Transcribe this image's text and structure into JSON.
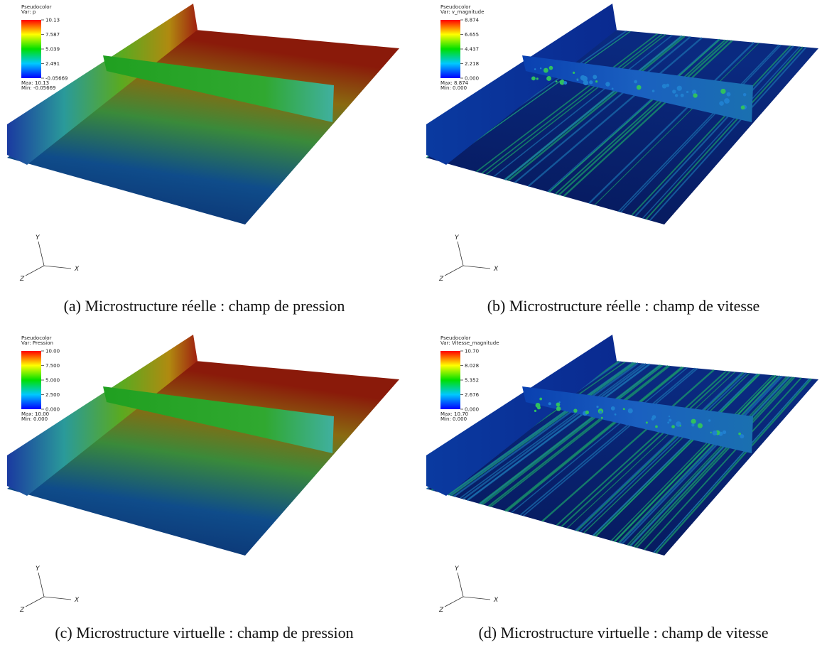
{
  "panels": [
    {
      "legend": {
        "title": "Pseudocolor",
        "variable": "Var: p",
        "ticks": [
          "10.13",
          "7.587",
          "5.039",
          "2.491",
          "-0.05669"
        ],
        "max": "Max: 10.13",
        "min": "Min: -0.05669"
      },
      "axes": {
        "x": "X",
        "y": "Y",
        "z": "Z"
      },
      "caption": "(a) Microstructure réelle : champ de pression"
    },
    {
      "legend": {
        "title": "Pseudocolor",
        "variable": "Var: v_magnitude",
        "ticks": [
          "8.874",
          "6.655",
          "4.437",
          "2.218",
          "0.000"
        ],
        "max": "Max: 8.874",
        "min": "Min: 0.000"
      },
      "axes": {
        "x": "X",
        "y": "Y",
        "z": "Z"
      },
      "caption": "(b) Microstructure réelle : champ de vitesse"
    },
    {
      "legend": {
        "title": "Pseudocolor",
        "variable": "Var: Pression",
        "ticks": [
          "10.00",
          "7.500",
          "5.000",
          "2.500",
          "0.000"
        ],
        "max": "Max: 10.00",
        "min": "Min: 0.000"
      },
      "axes": {
        "x": "X",
        "y": "Y",
        "z": "Z"
      },
      "caption": "(c) Microstructure virtuelle : champ de pression"
    },
    {
      "legend": {
        "title": "Pseudocolor",
        "variable": "Var: Vitesse_magnitude",
        "ticks": [
          "10.70",
          "8.028",
          "5.352",
          "2.676",
          "0.000"
        ],
        "max": "Max: 10.70",
        "min": "Min: 0.000"
      },
      "axes": {
        "x": "X",
        "y": "Y",
        "z": "Z"
      },
      "caption": "(d) Microstructure virtuelle : champ de vitesse"
    }
  ]
}
